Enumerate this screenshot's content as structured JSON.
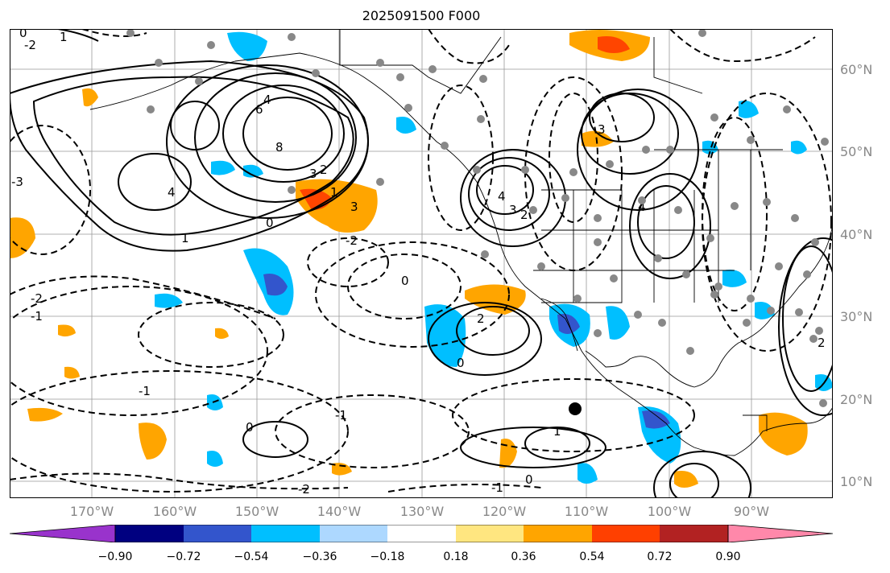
{
  "title": "2025091500 F000",
  "lat_labels": [
    "60°N",
    "50°N",
    "40°N",
    "30°N",
    "20°N",
    "10°N"
  ],
  "lon_labels": [
    "170°W",
    "160°W",
    "150°W",
    "140°W",
    "130°W",
    "120°W",
    "110°W",
    "100°W",
    "90°W"
  ],
  "colorbar": {
    "ticks": [
      "−0.90",
      "−0.72",
      "−0.54",
      "−0.36",
      "−0.18",
      "0.18",
      "0.36",
      "0.54",
      "0.72",
      "0.90"
    ],
    "colors": [
      "#9933cc",
      "#000080",
      "#3355cc",
      "#00bfff",
      "#add8ff",
      "#ffffff",
      "#ffe680",
      "#ffa500",
      "#ff4000",
      "#b22222",
      "#ff88aa",
      "#ff88aa"
    ]
  },
  "fill_colors": {
    "orange": "#ffa500",
    "red": "#ff4500",
    "cyan": "#00bfff",
    "blue": "#3355cc"
  },
  "contour_labels": [
    "0",
    "1",
    "2",
    "3",
    "4",
    "6",
    "8",
    "-1",
    "-2",
    "-3"
  ]
}
